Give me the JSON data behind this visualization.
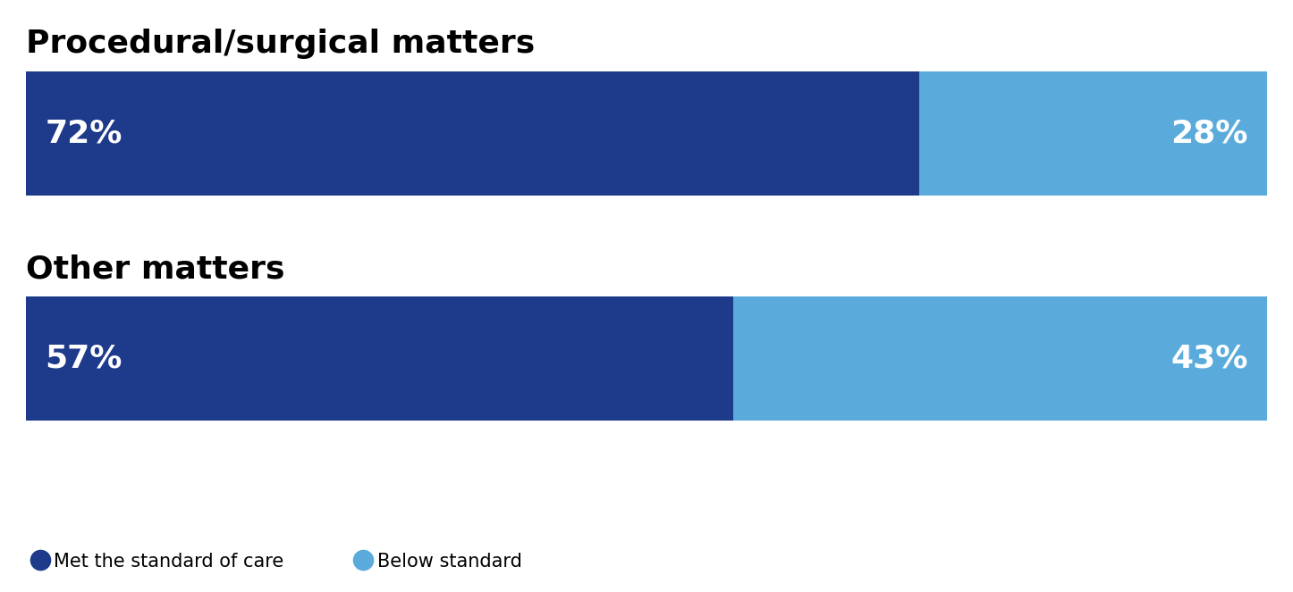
{
  "categories": [
    "Procedural/surgical matters",
    "Other matters"
  ],
  "met_values": [
    72,
    57
  ],
  "below_values": [
    28,
    43
  ],
  "met_label": "Met the standard of care",
  "below_label": "Below standard",
  "met_color": "#1e3a8a",
  "below_color": "#5aabdc",
  "text_color": "#ffffff",
  "title_color": "#000000",
  "label_fontsize": 26,
  "title_fontsize": 26,
  "legend_fontsize": 15
}
